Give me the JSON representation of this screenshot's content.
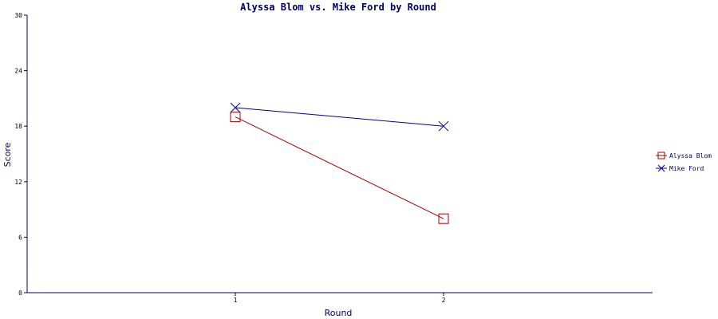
{
  "chart_data": {
    "type": "line",
    "title": "Alyssa Blom vs. Mike Ford by Round",
    "xlabel": "Round",
    "ylabel": "Score",
    "categories": [
      "1",
      "2"
    ],
    "ylim": [
      0,
      30
    ],
    "yticks": [
      0,
      6,
      12,
      18,
      24,
      30
    ],
    "grid": false,
    "legend_position": "right",
    "series": [
      {
        "name": "Alyssa Blom",
        "values": [
          19,
          8
        ],
        "color": "#aa0000",
        "marker": "square"
      },
      {
        "name": "Mike Ford",
        "values": [
          20,
          18
        ],
        "color": "#000099",
        "marker": "x"
      }
    ],
    "axis_color": "#000066"
  }
}
